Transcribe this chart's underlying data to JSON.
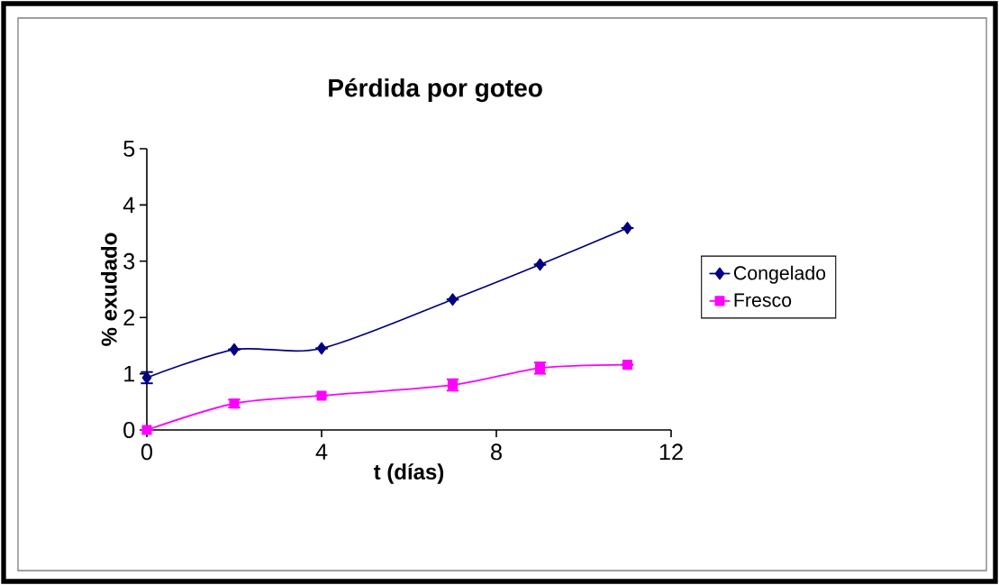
{
  "chart_data": {
    "type": "line",
    "title": "Pérdida por goteo",
    "xlabel": "t (días)",
    "ylabel": "% exudado",
    "x": [
      0,
      2,
      4,
      7,
      9,
      11
    ],
    "series": [
      {
        "name": "Congelado",
        "color": "#000080",
        "marker": "diamond",
        "values": [
          0.93,
          1.43,
          1.45,
          2.32,
          2.94,
          3.59
        ],
        "errors": [
          0.1,
          null,
          null,
          null,
          null,
          null
        ]
      },
      {
        "name": "Fresco",
        "color": "#ff00ff",
        "marker": "square",
        "values": [
          0,
          0.47,
          0.61,
          0.8,
          1.1,
          1.16
        ],
        "errors": [
          null,
          0.07,
          null,
          0.1,
          0.1,
          null
        ]
      }
    ],
    "xlim": [
      0,
      12
    ],
    "xticks": [
      0,
      4,
      8,
      12
    ],
    "ylim": [
      0,
      5
    ],
    "yticks": [
      0,
      1,
      2,
      3,
      4,
      5
    ],
    "grid": false,
    "legend": "right",
    "line_style": "solid"
  }
}
